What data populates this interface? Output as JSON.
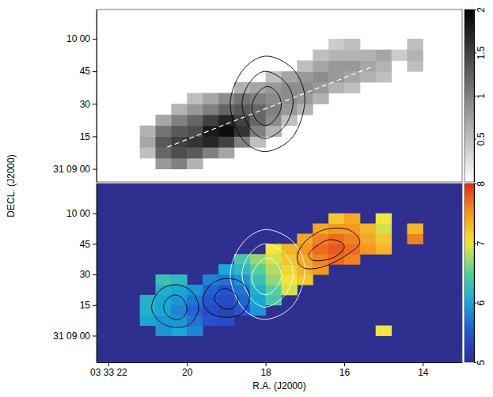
{
  "chart_data": {
    "type": "heatmap",
    "xlabel": "R.A. (J2000)",
    "ylabel": "DECL. (J2000)",
    "xlim": [
      22.3,
      13
    ],
    "xticks": [
      {
        "value": 22,
        "label": "03 33 22"
      },
      20,
      18,
      16,
      14
    ],
    "x": [
      21,
      20.6,
      20.2,
      19.8,
      19.4,
      19,
      18.6,
      18.2,
      17.8,
      17.4,
      17,
      16.6,
      16.2,
      15.8,
      15.4,
      15,
      14.6,
      14.2
    ],
    "y": [
      2.5,
      7.5,
      12.5,
      17.5,
      22.5,
      27.5,
      32.5,
      37.5,
      42.5,
      47.5,
      52.5,
      57.5
    ],
    "panels": [
      {
        "color": "gray",
        "ylim": [
          -6,
          73.5
        ],
        "yticks": [
          {
            "value": 60,
            "label": "10 00"
          },
          45,
          30,
          15,
          {
            "value": 0,
            "label": "31 09 00"
          }
        ],
        "colorbar": {
          "range": [
            0,
            2
          ],
          "ticks": [
            0.5,
            1,
            1.5,
            2
          ]
        },
        "z": [
          [
            null,
            0.8,
            1,
            0.6,
            null,
            null,
            null,
            null,
            null,
            null,
            null,
            null,
            null,
            null,
            null,
            null,
            null,
            null
          ],
          [
            0.5,
            1.2,
            1.4,
            1.3,
            1,
            0.7,
            null,
            null,
            null,
            null,
            null,
            null,
            null,
            null,
            null,
            null,
            null,
            null
          ],
          [
            0.7,
            1.3,
            1.5,
            1.6,
            1.7,
            1.5,
            1,
            0.5,
            null,
            null,
            null,
            null,
            null,
            null,
            null,
            null,
            null,
            null
          ],
          [
            0.6,
            1.1,
            1.3,
            1.4,
            1.8,
            1.9,
            1.6,
            1,
            0.6,
            null,
            null,
            null,
            null,
            null,
            null,
            null,
            null,
            null
          ],
          [
            null,
            0.7,
            1,
            1.2,
            1.5,
            1.7,
            1.5,
            1.2,
            0.9,
            0.5,
            null,
            null,
            null,
            null,
            null,
            null,
            null,
            null
          ],
          [
            null,
            null,
            0.6,
            0.8,
            1,
            1.2,
            1.3,
            1.2,
            1,
            0.8,
            0.6,
            null,
            null,
            null,
            null,
            null,
            null,
            null
          ],
          [
            null,
            null,
            null,
            0.5,
            0.7,
            0.9,
            1.1,
            1,
            0.9,
            0.9,
            0.8,
            0.6,
            null,
            null,
            null,
            null,
            null,
            null
          ],
          [
            null,
            null,
            null,
            null,
            null,
            null,
            0.6,
            0.7,
            0.8,
            0.9,
            0.9,
            0.8,
            0.6,
            0.5,
            null,
            null,
            null,
            null
          ],
          [
            null,
            null,
            null,
            null,
            null,
            null,
            null,
            null,
            0.5,
            0.7,
            0.8,
            0.9,
            0.8,
            0.7,
            0.6,
            0.5,
            null,
            null
          ],
          [
            null,
            null,
            null,
            null,
            null,
            null,
            null,
            null,
            null,
            null,
            0.5,
            0.7,
            0.8,
            0.8,
            0.7,
            0.6,
            null,
            0.5
          ],
          [
            null,
            null,
            null,
            null,
            null,
            null,
            null,
            null,
            null,
            null,
            null,
            0.5,
            0.6,
            0.6,
            0.6,
            0.7,
            0.4,
            0.6
          ],
          [
            null,
            null,
            null,
            null,
            null,
            null,
            null,
            null,
            null,
            null,
            null,
            null,
            0.4,
            0.5,
            null,
            null,
            null,
            0.5
          ]
        ],
        "lines": [
          {
            "x": [
              20.5,
              15.3
            ],
            "y": [
              10,
              47
            ],
            "color": "white",
            "line_style": "dashed"
          }
        ],
        "contours": [
          {
            "color": "black",
            "x": [
              18.9,
              18.6,
              18,
              17.3,
              17,
              17.3,
              18,
              18.6
            ],
            "y": [
              30,
              45,
              52,
              46,
              32,
              15,
              8,
              14
            ]
          },
          {
            "color": "black",
            "x": [
              18.6,
              18.4,
              18,
              17.5,
              17.3,
              17.5,
              18,
              18.4
            ],
            "y": [
              30,
              40,
              45,
              40,
              31,
              20,
              14,
              19
            ]
          },
          {
            "color": "black",
            "x": [
              18.35,
              18.2,
              17.95,
              17.7,
              17.6,
              17.75,
              18,
              18.25
            ],
            "y": [
              29,
              35,
              38,
              35,
              29,
              23,
              20,
              23
            ]
          }
        ]
      },
      {
        "color": "rainbow",
        "ylim": [
          -13,
          74.6
        ],
        "yticks": [
          {
            "value": 60,
            "label": "10 00"
          },
          45,
          30,
          15,
          {
            "value": 0,
            "label": "31 09 00"
          }
        ],
        "colorbar": {
          "range": [
            5,
            8
          ],
          "ticks": [
            5,
            6,
            7,
            8
          ]
        },
        "z": [
          [
            null,
            5.9,
            6,
            5.8,
            null,
            null,
            null,
            null,
            null,
            null,
            null,
            null,
            null,
            null,
            null,
            7,
            null,
            null
          ],
          [
            6,
            5.9,
            5.9,
            5.7,
            5.5,
            5.4,
            null,
            null,
            null,
            null,
            null,
            null,
            null,
            null,
            null,
            null,
            null,
            null
          ],
          [
            6.1,
            6,
            5.8,
            5.6,
            5.4,
            5.3,
            5.5,
            5.9,
            null,
            null,
            null,
            null,
            null,
            null,
            null,
            null,
            null,
            null
          ],
          [
            6.1,
            6,
            5.9,
            5.7,
            5.5,
            5.4,
            5.6,
            6,
            6.4,
            null,
            null,
            null,
            null,
            null,
            null,
            null,
            null,
            null
          ],
          [
            null,
            6.1,
            6,
            5.9,
            5.6,
            5.5,
            5.7,
            6.1,
            6.5,
            6.9,
            null,
            null,
            null,
            null,
            null,
            null,
            null,
            null
          ],
          [
            null,
            6.3,
            6.2,
            null,
            5.8,
            5.7,
            5.9,
            6.3,
            6.7,
            7,
            7.2,
            null,
            null,
            null,
            null,
            null,
            null,
            null
          ],
          [
            null,
            null,
            null,
            null,
            null,
            6,
            6.2,
            6.5,
            6.8,
            7.1,
            7.3,
            7.5,
            null,
            null,
            null,
            null,
            null,
            null
          ],
          [
            null,
            null,
            null,
            null,
            null,
            null,
            6.4,
            6.7,
            6.9,
            7.2,
            7.4,
            7.6,
            7.7,
            7.6,
            null,
            null,
            null,
            null
          ],
          [
            null,
            null,
            null,
            null,
            null,
            null,
            null,
            null,
            7,
            7.3,
            7.5,
            7.7,
            7.8,
            7.7,
            7.5,
            7.3,
            null,
            null
          ],
          [
            null,
            null,
            null,
            null,
            null,
            null,
            null,
            null,
            null,
            null,
            7.4,
            7.6,
            7.7,
            7.6,
            7.4,
            7.2,
            null,
            7.6
          ],
          [
            null,
            null,
            null,
            null,
            null,
            null,
            null,
            null,
            null,
            null,
            null,
            7.4,
            7.5,
            7.5,
            7.3,
            6.9,
            null,
            7.3
          ],
          [
            null,
            null,
            null,
            null,
            null,
            null,
            null,
            null,
            null,
            null,
            null,
            null,
            7.2,
            7.4,
            null,
            7,
            null,
            null
          ]
        ],
        "contours": [
          {
            "color": "white",
            "x": [
              18.9,
              18.6,
              18,
              17.3,
              17,
              17.3,
              18,
              18.6
            ],
            "y": [
              30,
              45,
              52,
              46,
              32,
              15,
              8,
              14
            ]
          },
          {
            "color": "white",
            "x": [
              18.6,
              18.4,
              18,
              17.5,
              17.3,
              17.5,
              18,
              18.4
            ],
            "y": [
              30,
              40,
              45,
              40,
              31,
              20,
              14,
              19
            ]
          },
          {
            "color": "white",
            "x": [
              18.35,
              18.2,
              17.95,
              17.7,
              17.6,
              17.75,
              18,
              18.25
            ],
            "y": [
              29,
              35,
              38,
              35,
              29,
              23,
              20,
              23
            ]
          },
          {
            "color": "black",
            "x": [
              20.9,
              20.7,
              20.3,
              19.9,
              19.7,
              19.9,
              20.3,
              20.7
            ],
            "y": [
              14,
              22,
              25,
              22,
              14,
              6,
              4,
              7
            ]
          },
          {
            "color": "black",
            "x": [
              20.6,
              20.5,
              20.3,
              20.1,
              20,
              20.1,
              20.3,
              20.5
            ],
            "y": [
              14,
              18,
              20,
              18,
              13,
              9,
              8,
              10
            ]
          },
          {
            "color": "black",
            "x": [
              19.6,
              19.4,
              19,
              18.6,
              18.4,
              18.6,
              19,
              19.4
            ],
            "y": [
              17,
              25,
              28,
              26,
              19,
              11,
              9,
              11
            ]
          },
          {
            "color": "black",
            "x": [
              19.3,
              19.2,
              19,
              18.8,
              18.7,
              18.8,
              19,
              19.2
            ],
            "y": [
              18,
              22,
              23,
              21,
              18,
              14,
              13,
              15
            ]
          },
          {
            "color": "black",
            "x": [
              17.2,
              17,
              16.5,
              15.9,
              15.6,
              15.9,
              16.5,
              17
            ],
            "y": [
              38,
              46,
              52,
              52,
              46,
              40,
              34,
              33
            ]
          },
          {
            "color": "black",
            "x": [
              16.9,
              16.7,
              16.4,
              16.1,
              16,
              16.2,
              16.5,
              16.8
            ],
            "y": [
              40,
              44,
              47,
              46,
              43,
              39,
              37,
              37
            ]
          }
        ]
      }
    ]
  }
}
